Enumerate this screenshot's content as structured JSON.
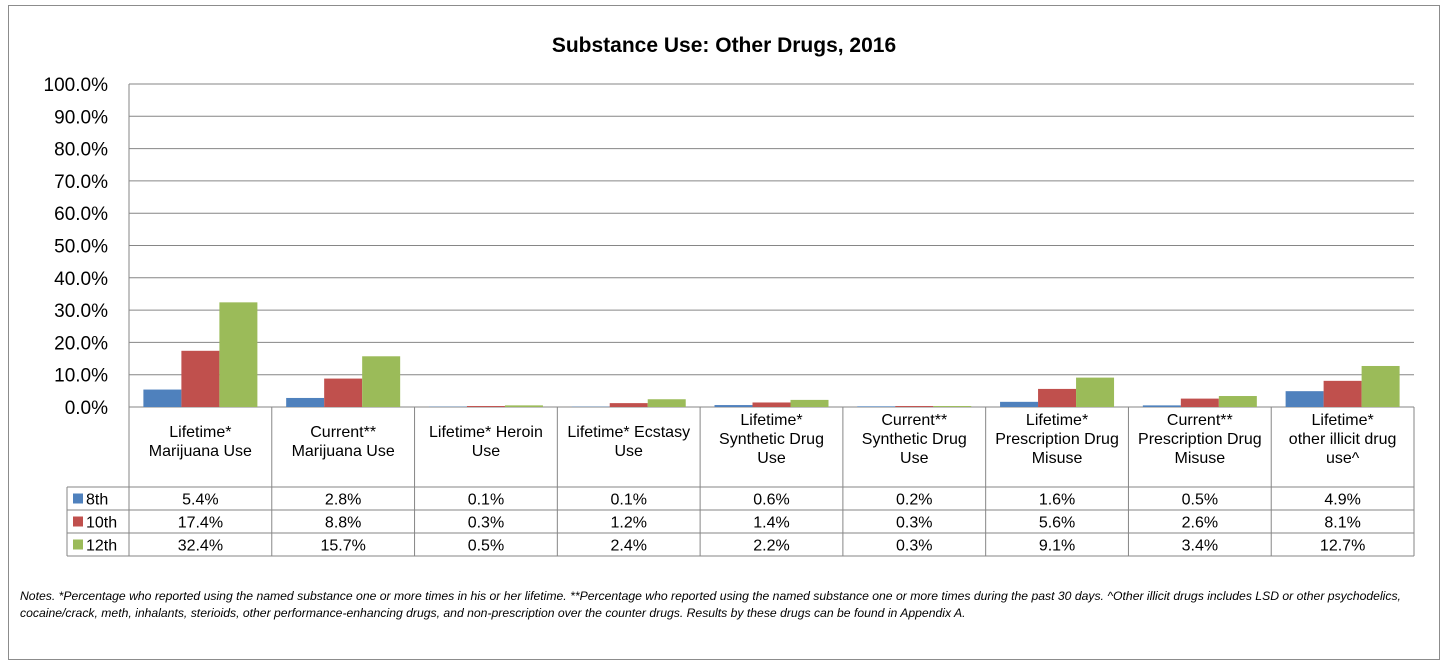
{
  "chart_data": {
    "type": "bar",
    "title": "Substance Use: Other Drugs, 2016",
    "ylim": [
      0,
      100
    ],
    "y_ticks": [
      "0.0%",
      "10.0%",
      "20.0%",
      "30.0%",
      "40.0%",
      "50.0%",
      "60.0%",
      "70.0%",
      "80.0%",
      "90.0%",
      "100.0%"
    ],
    "grid": true,
    "legend_placement": "data-table",
    "categories": [
      [
        "Lifetime*",
        "Marijuana Use"
      ],
      [
        "Current**",
        "Marijuana Use"
      ],
      [
        "Lifetime* Heroin",
        "Use"
      ],
      [
        "Lifetime* Ecstasy",
        "Use"
      ],
      [
        "Lifetime*",
        "Synthetic Drug",
        "Use"
      ],
      [
        "Current**",
        "Synthetic Drug",
        "Use"
      ],
      [
        "Lifetime*",
        "Prescription Drug",
        "Misuse"
      ],
      [
        "Current**",
        "Prescription Drug",
        "Misuse"
      ],
      [
        "Lifetime*",
        "other illicit drug",
        "use^"
      ]
    ],
    "series": [
      {
        "name": "8th",
        "color": "#4f81bd",
        "values": [
          5.4,
          2.8,
          0.1,
          0.1,
          0.6,
          0.2,
          1.6,
          0.5,
          4.9
        ],
        "labels": [
          "5.4%",
          "2.8%",
          "0.1%",
          "0.1%",
          "0.6%",
          "0.2%",
          "1.6%",
          "0.5%",
          "4.9%"
        ]
      },
      {
        "name": "10th",
        "color": "#c0504d",
        "values": [
          17.4,
          8.8,
          0.3,
          1.2,
          1.4,
          0.3,
          5.6,
          2.6,
          8.1
        ],
        "labels": [
          "17.4%",
          "8.8%",
          "0.3%",
          "1.2%",
          "1.4%",
          "0.3%",
          "5.6%",
          "2.6%",
          "8.1%"
        ]
      },
      {
        "name": "12th",
        "color": "#9bbb59",
        "values": [
          32.4,
          15.7,
          0.5,
          2.4,
          2.2,
          0.3,
          9.1,
          3.4,
          12.7
        ],
        "labels": [
          "32.4%",
          "15.7%",
          "0.5%",
          "2.4%",
          "2.2%",
          "0.3%",
          "9.1%",
          "3.4%",
          "12.7%"
        ]
      }
    ]
  },
  "notes": "Notes. *Percentage who reported using the named substance one or more times in his or her lifetime. **Percentage who reported using the named substance one or more times during the past 30 days. ^Other illicit drugs includes LSD or other psychodelics, cocaine/crack, meth, inhalants, sterioids, other performance-enhancing drugs, and non-prescription over the counter drugs. Results by these drugs can be found in Appendix A."
}
